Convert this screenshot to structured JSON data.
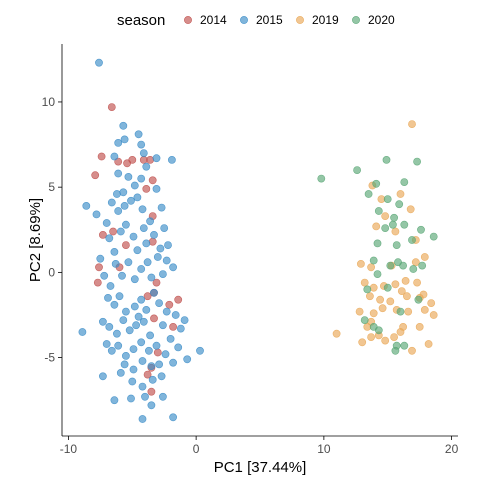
{
  "chart_data": {
    "type": "scatter",
    "xlabel": "PC1 [37.44%]",
    "ylabel": "PC2 [8.69%]",
    "xlim": [
      -10.5,
      20.5
    ],
    "ylim": [
      -9.6,
      13.4
    ],
    "xticks": [
      -10,
      0,
      10,
      20
    ],
    "xtick_labels": [
      "-10",
      "0",
      "10",
      "20"
    ],
    "yticks": [
      -5,
      0,
      5,
      10
    ],
    "ytick_labels": [
      "-5",
      "0",
      "5",
      "10"
    ],
    "grid": false,
    "legend": {
      "title": "season",
      "position": "top"
    },
    "series": [
      {
        "name": "2014",
        "color": "#C0504D",
        "points": [
          [
            -6.6,
            9.7
          ],
          [
            -7.4,
            6.8
          ],
          [
            -7.9,
            5.7
          ],
          [
            -6.1,
            6.5
          ],
          [
            -5.4,
            6.4
          ],
          [
            -5.0,
            6.6
          ],
          [
            -4.1,
            6.6
          ],
          [
            -3.6,
            6.6
          ],
          [
            -3.4,
            5.4
          ],
          [
            -3.9,
            4.9
          ],
          [
            -3.4,
            3.3
          ],
          [
            -3.4,
            1.8
          ],
          [
            -7.3,
            2.2
          ],
          [
            -7.6,
            0.3
          ],
          [
            -7.7,
            -0.6
          ],
          [
            -6.0,
            0.3
          ],
          [
            -3.1,
            -0.6
          ],
          [
            -3.3,
            -1.2
          ],
          [
            -3.8,
            -1.4
          ],
          [
            -1.4,
            -1.6
          ],
          [
            -2.1,
            -1.9
          ],
          [
            -3.3,
            -2.7
          ],
          [
            -1.8,
            -3.2
          ],
          [
            -3.0,
            -4.7
          ],
          [
            -3.5,
            -5.6
          ],
          [
            -3.8,
            -6.0
          ],
          [
            -3.5,
            -7.0
          ],
          [
            -6.5,
            2.4
          ],
          [
            -5.5,
            1.6
          ]
        ]
      },
      {
        "name": "2015",
        "color": "#3C8DC8",
        "points": [
          [
            -7.6,
            12.3
          ],
          [
            -6.1,
            7.6
          ],
          [
            -5.7,
            8.6
          ],
          [
            -5.6,
            7.8
          ],
          [
            -4.5,
            8.1
          ],
          [
            -4.3,
            7.5
          ],
          [
            -4.1,
            7.0
          ],
          [
            -6.4,
            6.8
          ],
          [
            -6.1,
            5.8
          ],
          [
            -5.7,
            4.7
          ],
          [
            -5.3,
            5.6
          ],
          [
            -4.8,
            5.1
          ],
          [
            -4.3,
            5.5
          ],
          [
            -3.9,
            6.2
          ],
          [
            -3.1,
            4.9
          ],
          [
            -6.6,
            4.1
          ],
          [
            -6.1,
            3.6
          ],
          [
            -5.6,
            3.9
          ],
          [
            -5.1,
            4.2
          ],
          [
            -4.2,
            3.7
          ],
          [
            -3.6,
            3.0
          ],
          [
            -2.7,
            3.8
          ],
          [
            -2.5,
            2.6
          ],
          [
            -2.2,
            1.6
          ],
          [
            -7.0,
            2.9
          ],
          [
            -6.8,
            2.0
          ],
          [
            -6.4,
            1.2
          ],
          [
            -5.9,
            2.4
          ],
          [
            -5.5,
            2.8
          ],
          [
            -4.9,
            2.1
          ],
          [
            -4.6,
            1.3
          ],
          [
            -4.1,
            2.6
          ],
          [
            -3.9,
            1.7
          ],
          [
            -3.3,
            2.2
          ],
          [
            -2.8,
            1.4
          ],
          [
            -2.3,
            0.7
          ],
          [
            -7.5,
            0.8
          ],
          [
            -7.2,
            -0.2
          ],
          [
            -6.7,
            -0.8
          ],
          [
            -6.3,
            0.5
          ],
          [
            -5.8,
            -0.2
          ],
          [
            -5.3,
            0.6
          ],
          [
            -4.8,
            -0.4
          ],
          [
            -4.3,
            0.2
          ],
          [
            -3.8,
            0.6
          ],
          [
            -3.5,
            -0.3
          ],
          [
            -2.6,
            -0.1
          ],
          [
            -1.8,
            0.3
          ],
          [
            -6.9,
            -1.5
          ],
          [
            -6.4,
            -1.9
          ],
          [
            -6.0,
            -1.4
          ],
          [
            -5.5,
            -2.3
          ],
          [
            -4.8,
            -2.0
          ],
          [
            -4.3,
            -1.6
          ],
          [
            -3.9,
            -2.2
          ],
          [
            -2.9,
            -1.8
          ],
          [
            -2.3,
            -2.3
          ],
          [
            -1.6,
            -2.5
          ],
          [
            -0.9,
            -2.8
          ],
          [
            -7.3,
            -2.9
          ],
          [
            -6.8,
            -3.2
          ],
          [
            -6.2,
            -3.6
          ],
          [
            -5.7,
            -2.8
          ],
          [
            -5.2,
            -3.4
          ],
          [
            -4.7,
            -3.1
          ],
          [
            -4.1,
            -2.9
          ],
          [
            -3.6,
            -3.7
          ],
          [
            -2.6,
            -3.1
          ],
          [
            -2.0,
            -3.9
          ],
          [
            -1.2,
            -3.3
          ],
          [
            -8.9,
            -3.5
          ],
          [
            -7.0,
            -4.2
          ],
          [
            -6.6,
            -4.6
          ],
          [
            -6.1,
            -4.3
          ],
          [
            -5.5,
            -4.9
          ],
          [
            -4.9,
            -4.5
          ],
          [
            -4.3,
            -4.1
          ],
          [
            -3.7,
            -4.6
          ],
          [
            -3.1,
            -4.3
          ],
          [
            -2.4,
            -4.8
          ],
          [
            -1.4,
            -4.4
          ],
          [
            -0.7,
            -5.1
          ],
          [
            0.3,
            -4.6
          ],
          [
            -7.3,
            -6.1
          ],
          [
            -5.6,
            -5.4
          ],
          [
            -4.9,
            -5.7
          ],
          [
            -4.2,
            -5.2
          ],
          [
            -3.5,
            -5.5
          ],
          [
            -2.9,
            -5.4
          ],
          [
            -1.8,
            -5.3
          ],
          [
            -5.0,
            -6.4
          ],
          [
            -4.2,
            -6.7
          ],
          [
            -3.4,
            -6.3
          ],
          [
            -2.7,
            -6.1
          ],
          [
            -6.4,
            -7.5
          ],
          [
            -5.1,
            -7.4
          ],
          [
            -4.0,
            -7.3
          ],
          [
            -3.5,
            -7.8
          ],
          [
            -2.6,
            -7.3
          ],
          [
            -4.2,
            -8.6
          ],
          [
            -1.8,
            -8.5
          ],
          [
            -8.6,
            3.9
          ],
          [
            -7.8,
            3.4
          ],
          [
            -6.2,
            4.6
          ],
          [
            -4.6,
            4.4
          ],
          [
            -3.1,
            6.7
          ],
          [
            -1.9,
            6.6
          ],
          [
            -3.0,
            0.9
          ],
          [
            -4.5,
            -2.6
          ],
          [
            -5.9,
            -5.9
          ],
          [
            -3.3,
            -1.2
          ]
        ]
      },
      {
        "name": "2019",
        "color": "#E9A857",
        "points": [
          [
            16.9,
            8.7
          ],
          [
            13.8,
            5.1
          ],
          [
            16.0,
            4.6
          ],
          [
            14.5,
            4.3
          ],
          [
            14.8,
            3.3
          ],
          [
            16.8,
            3.7
          ],
          [
            14.1,
            2.7
          ],
          [
            15.6,
            2.4
          ],
          [
            17.2,
            1.9
          ],
          [
            12.9,
            0.5
          ],
          [
            13.7,
            0.3
          ],
          [
            15.3,
            0.4
          ],
          [
            16.4,
            -0.5
          ],
          [
            17.2,
            0.6
          ],
          [
            17.9,
            0.9
          ],
          [
            13.2,
            -0.6
          ],
          [
            13.9,
            -0.9
          ],
          [
            14.7,
            -0.8
          ],
          [
            15.6,
            -0.7
          ],
          [
            16.1,
            -1.1
          ],
          [
            17.3,
            -0.6
          ],
          [
            17.8,
            -1.3
          ],
          [
            13.6,
            -1.4
          ],
          [
            14.4,
            -1.6
          ],
          [
            15.2,
            -1.7
          ],
          [
            16.5,
            -1.4
          ],
          [
            17.5,
            -1.5
          ],
          [
            18.4,
            -1.8
          ],
          [
            12.8,
            -2.3
          ],
          [
            13.9,
            -2.4
          ],
          [
            14.6,
            -2.1
          ],
          [
            15.7,
            -2.2
          ],
          [
            16.6,
            -2.3
          ],
          [
            17.9,
            -2.2
          ],
          [
            13.4,
            -3.2
          ],
          [
            14.3,
            -3.7
          ],
          [
            15.5,
            -3.8
          ],
          [
            16.2,
            -3.2
          ],
          [
            17.5,
            -3.2
          ],
          [
            18.6,
            -2.5
          ],
          [
            11.0,
            -3.6
          ],
          [
            13.0,
            -4.1
          ],
          [
            13.7,
            -3.8
          ],
          [
            14.8,
            -4.0
          ],
          [
            16.0,
            -3.5
          ],
          [
            16.9,
            -4.6
          ],
          [
            18.2,
            -4.2
          ],
          [
            13.7,
            -2.9
          ]
        ]
      },
      {
        "name": "2020",
        "color": "#5AA777",
        "points": [
          [
            9.8,
            5.5
          ],
          [
            12.6,
            6.0
          ],
          [
            14.9,
            6.6
          ],
          [
            17.3,
            6.5
          ],
          [
            14.1,
            5.2
          ],
          [
            16.3,
            5.3
          ],
          [
            13.5,
            4.6
          ],
          [
            15.0,
            4.3
          ],
          [
            15.9,
            4.0
          ],
          [
            14.3,
            3.6
          ],
          [
            15.5,
            3.2
          ],
          [
            16.3,
            2.8
          ],
          [
            14.8,
            2.6
          ],
          [
            15.4,
            2.8
          ],
          [
            17.6,
            2.5
          ],
          [
            18.6,
            2.1
          ],
          [
            14.2,
            1.7
          ],
          [
            15.7,
            1.6
          ],
          [
            16.9,
            1.9
          ],
          [
            13.9,
            0.7
          ],
          [
            15.2,
            0.4
          ],
          [
            15.8,
            0.6
          ],
          [
            16.2,
            0.4
          ],
          [
            17.0,
            0.2
          ],
          [
            17.7,
            0.4
          ],
          [
            14.2,
            -0.1
          ],
          [
            15.0,
            -0.9
          ],
          [
            13.4,
            -1.0
          ],
          [
            13.2,
            -2.8
          ],
          [
            16.0,
            -2.3
          ],
          [
            17.4,
            -1.6
          ],
          [
            14.3,
            -3.4
          ],
          [
            15.7,
            -4.3
          ],
          [
            16.3,
            -4.3
          ],
          [
            15.6,
            -4.6
          ],
          [
            13.9,
            -3.2
          ]
        ]
      }
    ]
  }
}
